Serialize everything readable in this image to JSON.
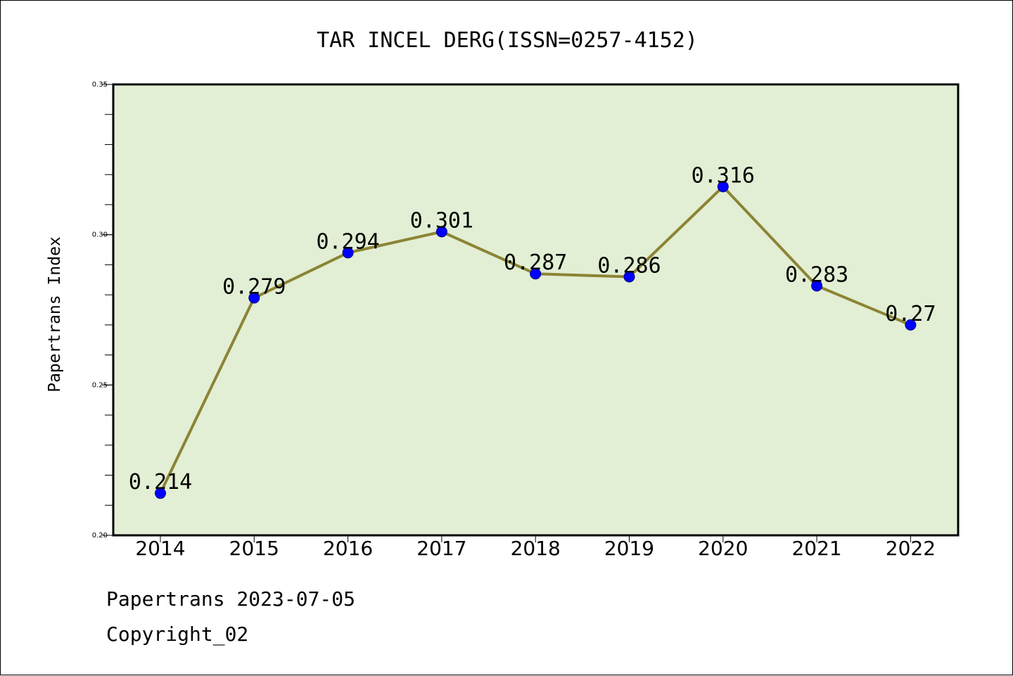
{
  "chart_data": {
    "type": "line",
    "title": "TAR INCEL DERG(ISSN=0257-4152)",
    "xlabel": "",
    "ylabel": "Papertrans Index",
    "categories": [
      "2014",
      "2015",
      "2016",
      "2017",
      "2018",
      "2019",
      "2020",
      "2021",
      "2022"
    ],
    "values": [
      0.214,
      0.279,
      0.294,
      0.301,
      0.287,
      0.286,
      0.316,
      0.283,
      0.27
    ],
    "data_labels": [
      "0.214",
      "0.279",
      "0.294",
      "0.301",
      "0.287",
      "0.286",
      "0.316",
      "0.283",
      "0.27"
    ],
    "ylim": [
      0.2,
      0.35
    ],
    "yticks": [
      0.2,
      0.25,
      0.3,
      0.35
    ],
    "ytick_labels": [
      "0.20",
      "0.25",
      "0.30",
      "0.35"
    ],
    "grid": false,
    "colors": {
      "plot_background": "#e2efd4",
      "line": "#8b8434",
      "marker_fill": "#0000ff",
      "marker_edge": "#000080"
    }
  },
  "footer": {
    "line1": "Papertrans 2023-07-05",
    "line2": "Copyright_02"
  }
}
